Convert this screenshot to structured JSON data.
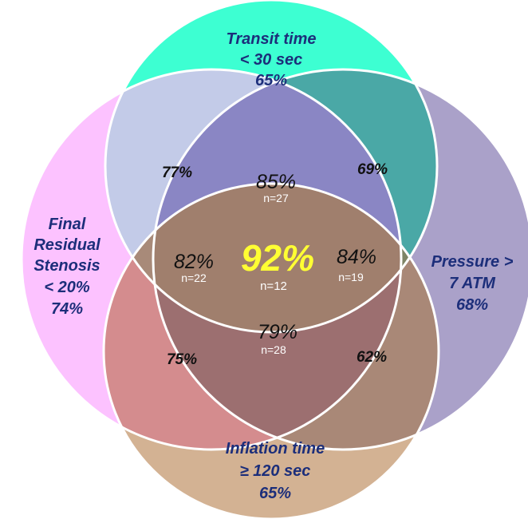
{
  "colors": {
    "transit": "#3dffd2",
    "final_residual": "#fcc2ff",
    "pressure": "#aaa1c9",
    "inflation": "#d3b293",
    "inflation_over_final": "#d48c8e",
    "center_yellow": "#ffff33",
    "label_blue": "#1c2e7a"
  },
  "sets": {
    "transit": {
      "line1": "Transit time",
      "line2": "< 30 sec",
      "pct": "65%"
    },
    "final_residual": {
      "line1": "Final",
      "line2": "Residual",
      "line3": "Stenosis",
      "line4": "< 20%",
      "pct": "74%"
    },
    "pressure": {
      "line1": "Pressure >",
      "line2": "7 ATM",
      "pct": "68%"
    },
    "inflation": {
      "line1": "Inflation time",
      "line2": "≥ 120 sec",
      "pct": "65%"
    }
  },
  "regions": {
    "transit_final": {
      "pct": "77%"
    },
    "transit_pressure": {
      "pct": "69%"
    },
    "transit_final_pressure": {
      "pct": "85%",
      "n": "n=27"
    },
    "final_inflation_transit": {
      "pct": "82%",
      "n": "n=22"
    },
    "all_four": {
      "pct": "92%",
      "n": "n=12"
    },
    "pressure_inflation_transit": {
      "pct": "84%",
      "n": "n=19"
    },
    "final_inflation_pressure": {
      "pct": "79%",
      "n": "n=28"
    },
    "final_inflation": {
      "pct": "75%"
    },
    "pressure_inflation": {
      "pct": "62%"
    }
  }
}
